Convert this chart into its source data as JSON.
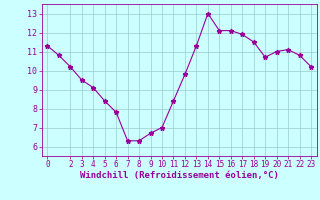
{
  "x": [
    0,
    1,
    2,
    3,
    4,
    5,
    6,
    7,
    8,
    9,
    10,
    11,
    12,
    13,
    14,
    15,
    16,
    17,
    18,
    19,
    20,
    21,
    22,
    23
  ],
  "y": [
    11.3,
    10.8,
    10.2,
    9.5,
    9.1,
    8.4,
    7.8,
    6.3,
    6.3,
    6.7,
    7.0,
    8.4,
    9.8,
    11.3,
    13.0,
    12.1,
    12.1,
    11.9,
    11.5,
    10.7,
    11.0,
    11.1,
    10.8,
    10.2
  ],
  "line_color": "#990099",
  "marker": "*",
  "marker_size": 3.5,
  "xlabel": "Windchill (Refroidissement éolien,°C)",
  "xlabel_color": "#990099",
  "xlabel_fontsize": 6.5,
  "background_color": "#ccffff",
  "grid_color": "#99cccc",
  "tick_color": "#990099",
  "ylim": [
    5.5,
    13.5
  ],
  "xlim": [
    -0.5,
    23.5
  ],
  "yticks": [
    6,
    7,
    8,
    9,
    10,
    11,
    12,
    13
  ],
  "xticks": [
    0,
    2,
    3,
    4,
    5,
    6,
    7,
    8,
    9,
    10,
    11,
    12,
    13,
    14,
    15,
    16,
    17,
    18,
    19,
    20,
    21,
    22,
    23
  ],
  "tick_fontsize": 5.5,
  "ytick_fontsize": 6.0
}
